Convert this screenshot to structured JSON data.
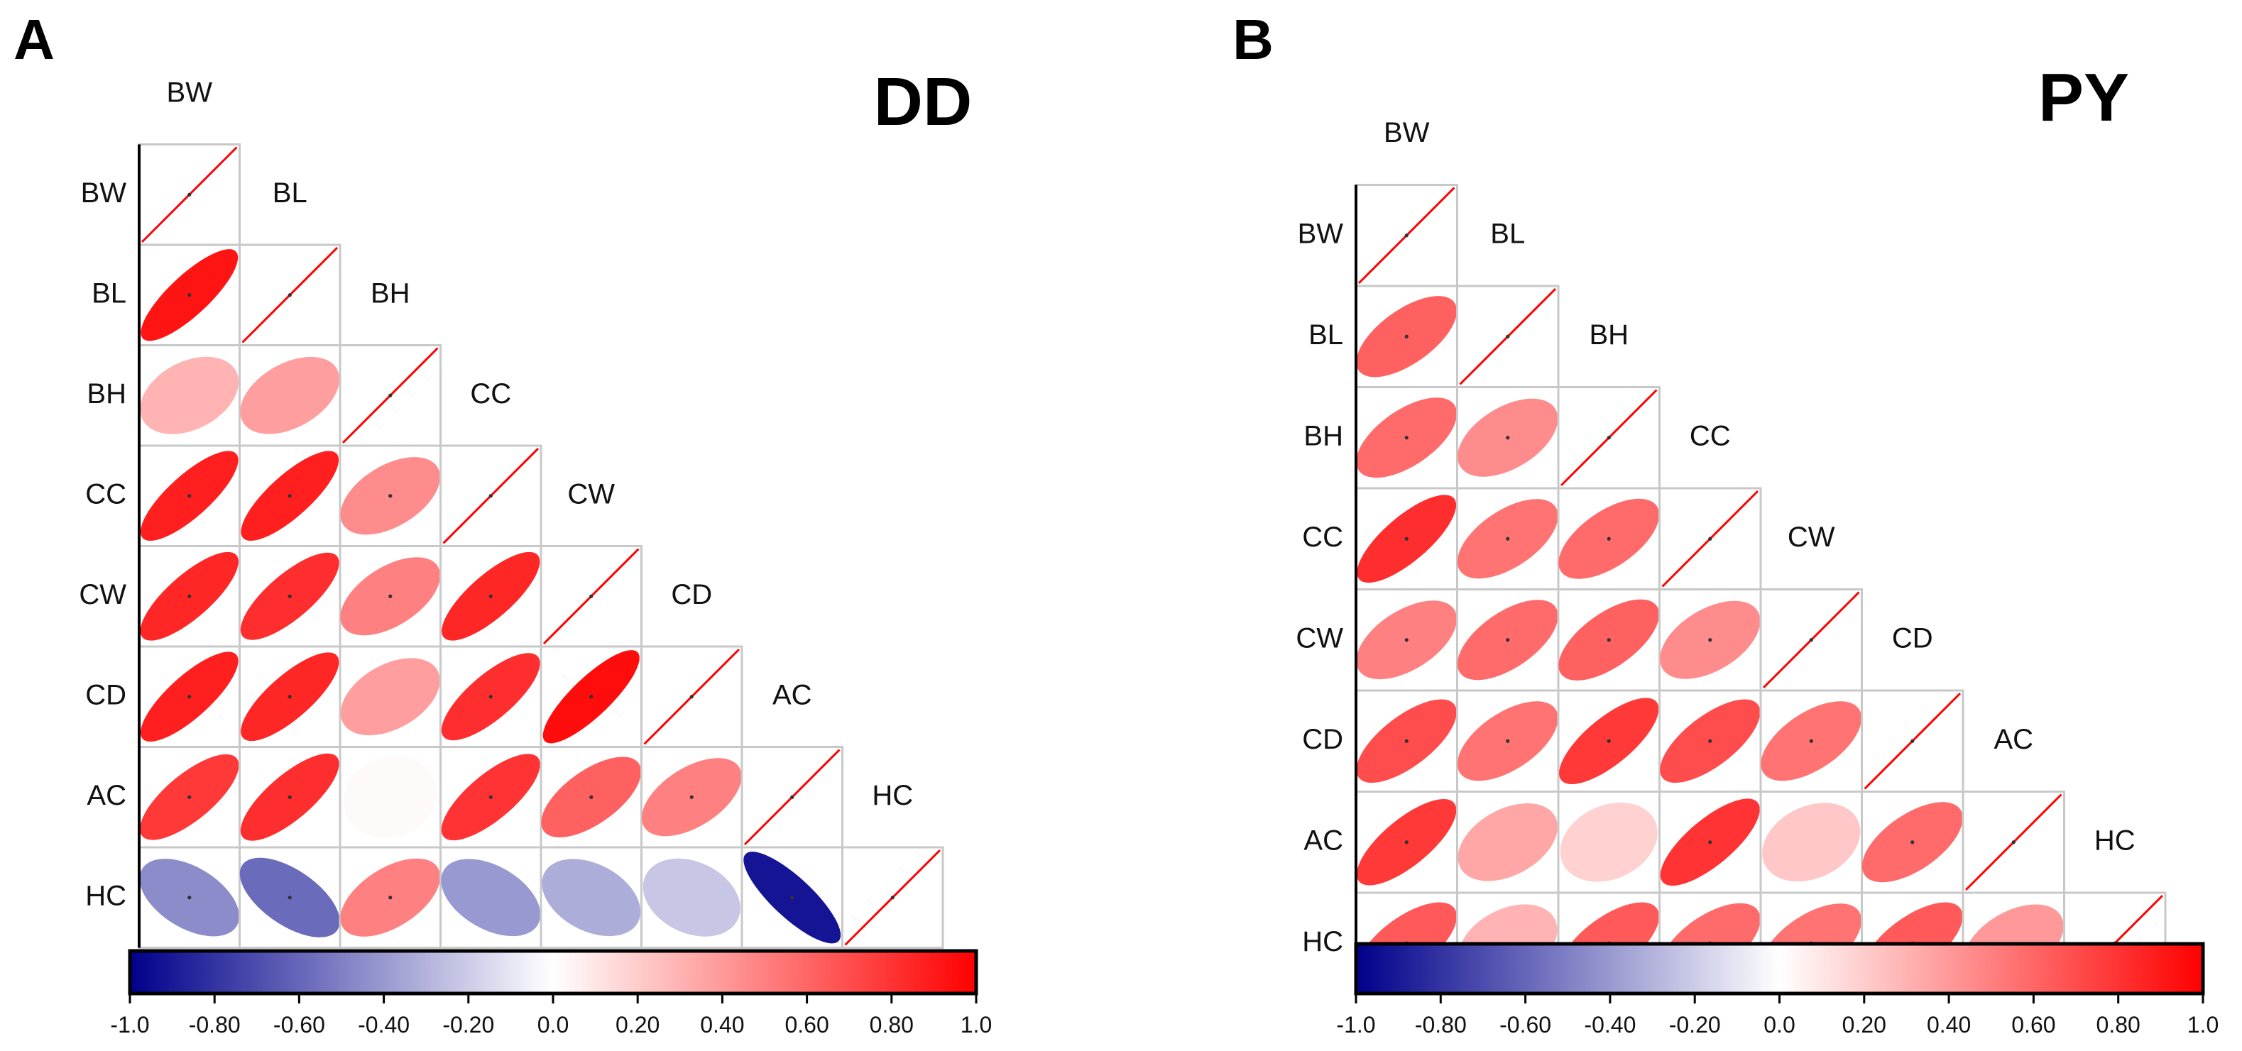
{
  "chart_data": [
    {
      "type": "correlation-ellipse-matrix",
      "panel": "A",
      "group": "DD",
      "variables": [
        "BW",
        "BL",
        "BH",
        "CC",
        "CW",
        "CD",
        "AC",
        "HC"
      ],
      "lower_triangle": [
        [],
        [
          0.92
        ],
        [
          0.3,
          0.38
        ],
        [
          0.88,
          0.88,
          0.45
        ],
        [
          0.85,
          0.82,
          0.5,
          0.85
        ],
        [
          0.88,
          0.85,
          0.38,
          0.82,
          0.95
        ],
        [
          0.78,
          0.82,
          0.02,
          0.8,
          0.62,
          0.5
        ],
        [
          -0.45,
          -0.58,
          0.5,
          -0.4,
          -0.32,
          -0.22,
          -0.92
        ]
      ],
      "diagonal": 1.0,
      "colorbar": {
        "min": -1.0,
        "max": 1.0,
        "low_color": "#00008b",
        "mid_color": "#ffffff",
        "high_color": "#ff0000",
        "tick_labels": [
          "-1.0",
          "-0.80",
          "-0.60",
          "-0.40",
          "-0.20",
          "0.0",
          "0.20",
          "0.40",
          "0.60",
          "0.80",
          "1.0"
        ]
      }
    },
    {
      "type": "correlation-ellipse-matrix",
      "panel": "B",
      "group": "PY",
      "variables": [
        "BW",
        "BL",
        "BH",
        "CC",
        "CW",
        "CD",
        "AC",
        "HC"
      ],
      "lower_triangle": [
        [],
        [
          0.62
        ],
        [
          0.58,
          0.45
        ],
        [
          0.82,
          0.55,
          0.58
        ],
        [
          0.5,
          0.58,
          0.62,
          0.45
        ],
        [
          0.7,
          0.55,
          0.78,
          0.7,
          0.55
        ],
        [
          0.78,
          0.35,
          0.18,
          0.8,
          0.22,
          0.58
        ],
        [
          0.65,
          0.3,
          0.65,
          0.58,
          0.55,
          0.65,
          0.4
        ]
      ],
      "diagonal": 1.0,
      "colorbar": {
        "min": -1.0,
        "max": 1.0,
        "low_color": "#00008b",
        "mid_color": "#ffffff",
        "high_color": "#ff0000",
        "tick_labels": [
          "-1.0",
          "-0.80",
          "-0.60",
          "-0.40",
          "-0.20",
          "0.0",
          "0.20",
          "0.40",
          "0.60",
          "0.80",
          "1.0"
        ]
      }
    }
  ]
}
